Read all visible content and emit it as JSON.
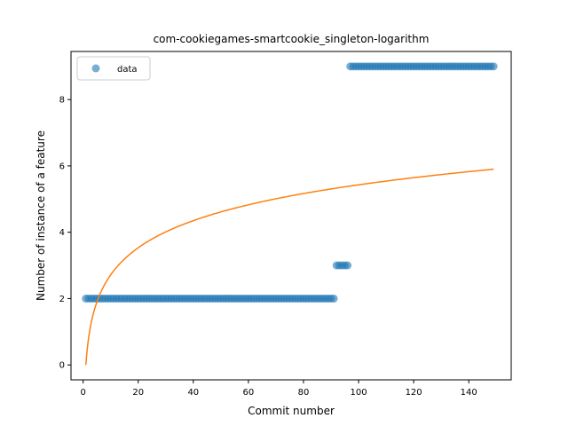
{
  "chart_data": {
    "type": "scatter",
    "title": "com-cookiegames-smartcookie_singleton-logarithm",
    "xlabel": "Commit number",
    "ylabel": "Number of instance of a feature",
    "xlim": [
      -4.4,
      155.4
    ],
    "ylim": [
      -0.45,
      9.45
    ],
    "xticks": [
      0,
      20,
      40,
      60,
      80,
      100,
      120,
      140
    ],
    "yticks": [
      0,
      2,
      4,
      6,
      8
    ],
    "grid": false,
    "legend": {
      "placement": "top-left",
      "entries": [
        "data"
      ]
    },
    "series": [
      {
        "name": "data",
        "kind": "scatter",
        "color": "#1f77b4",
        "segments": [
          {
            "x_from": 1,
            "x_to": 91,
            "y": 2
          },
          {
            "x_from": 92,
            "x_to": 96,
            "y": 3
          },
          {
            "x_from": 97,
            "x_to": 149,
            "y": 9
          }
        ]
      },
      {
        "kind": "line",
        "color": "#ff7f0e",
        "model": "logarithmic",
        "x_range": [
          1,
          149
        ],
        "y_range": [
          0,
          5.9
        ]
      }
    ]
  }
}
